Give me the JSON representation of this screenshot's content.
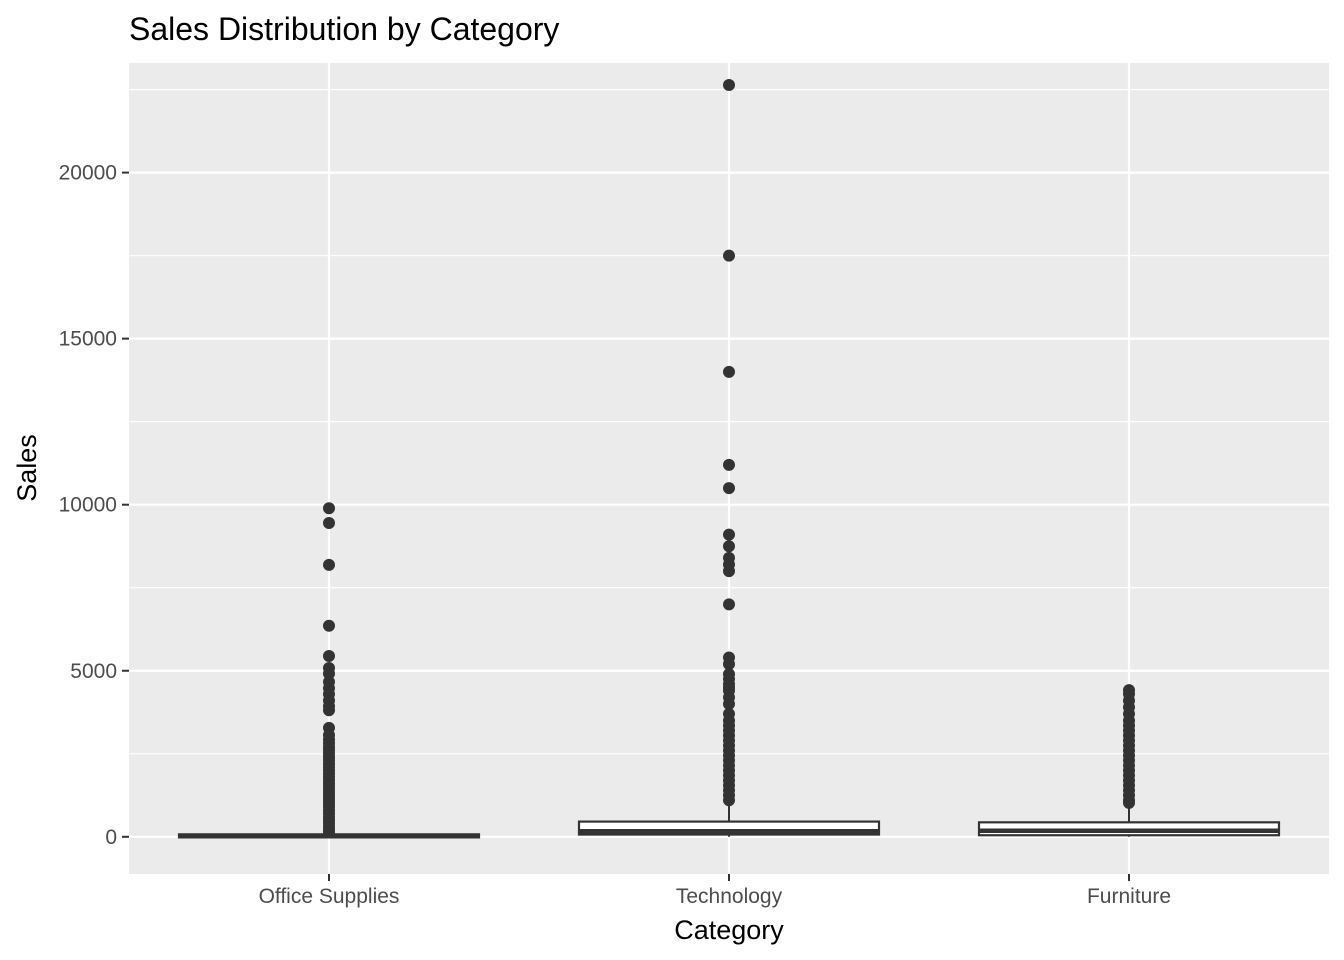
{
  "chart_data": {
    "type": "box",
    "title": "Sales Distribution by Category",
    "xlabel": "Category",
    "ylabel": "Sales",
    "categories": [
      "Office Supplies",
      "Technology",
      "Furniture"
    ],
    "ylim": [
      -1120,
      23300
    ],
    "yticks": [
      0,
      5000,
      10000,
      15000,
      20000
    ],
    "y_minor_ticks": [
      2500,
      7500,
      12500,
      17500,
      22500
    ],
    "grid": true,
    "legend": "none",
    "colors": {
      "panel_background": "#ebebeb",
      "gridline": "#ffffff",
      "box_fill": "#ffffff",
      "box_outline": "#333333",
      "outlier_point": "#333333",
      "tick_label": "#4d4d4d",
      "title": "#000000"
    },
    "boxes": [
      {
        "category": "Office Supplies",
        "min": 0.5,
        "q1": 5,
        "median": 17,
        "q3": 53,
        "max": 122,
        "outliers": [
          9893,
          9450,
          8188,
          6355,
          5444,
          5084,
          4912,
          4665,
          4475,
          4297,
          4104,
          3931,
          3812,
          3280,
          3061,
          2928,
          2812,
          2701,
          2602,
          2503,
          2402,
          2304,
          2205,
          2104,
          2004,
          1903,
          1802,
          1703,
          1604,
          1504,
          1405,
          1302,
          1204,
          1103,
          1005,
          904,
          801,
          703,
          601,
          502,
          402,
          301,
          201,
          140
        ]
      },
      {
        "category": "Technology",
        "min": 1,
        "q1": 68,
        "median": 167,
        "q3": 458,
        "max": 1040,
        "outliers": [
          22638,
          17500,
          13999,
          11200,
          10500,
          9100,
          8750,
          8400,
          8200,
          8000,
          6999,
          5400,
          5200,
          4900,
          4750,
          4600,
          4500,
          4400,
          4200,
          4000,
          3700,
          3500,
          3350,
          3200,
          3050,
          2900,
          2750,
          2600,
          2450,
          2300,
          2150,
          2000,
          1850,
          1700,
          1550,
          1400,
          1250,
          1100
        ]
      },
      {
        "category": "Furniture",
        "min": 2,
        "q1": 47,
        "median": 182,
        "q3": 436,
        "max": 1000,
        "outliers": [
          4416,
          4300,
          4100,
          3900,
          3700,
          3500,
          3350,
          3200,
          3050,
          2900,
          2750,
          2600,
          2450,
          2300,
          2150,
          2000,
          1850,
          1700,
          1550,
          1400,
          1250,
          1100,
          1020
        ]
      }
    ]
  }
}
